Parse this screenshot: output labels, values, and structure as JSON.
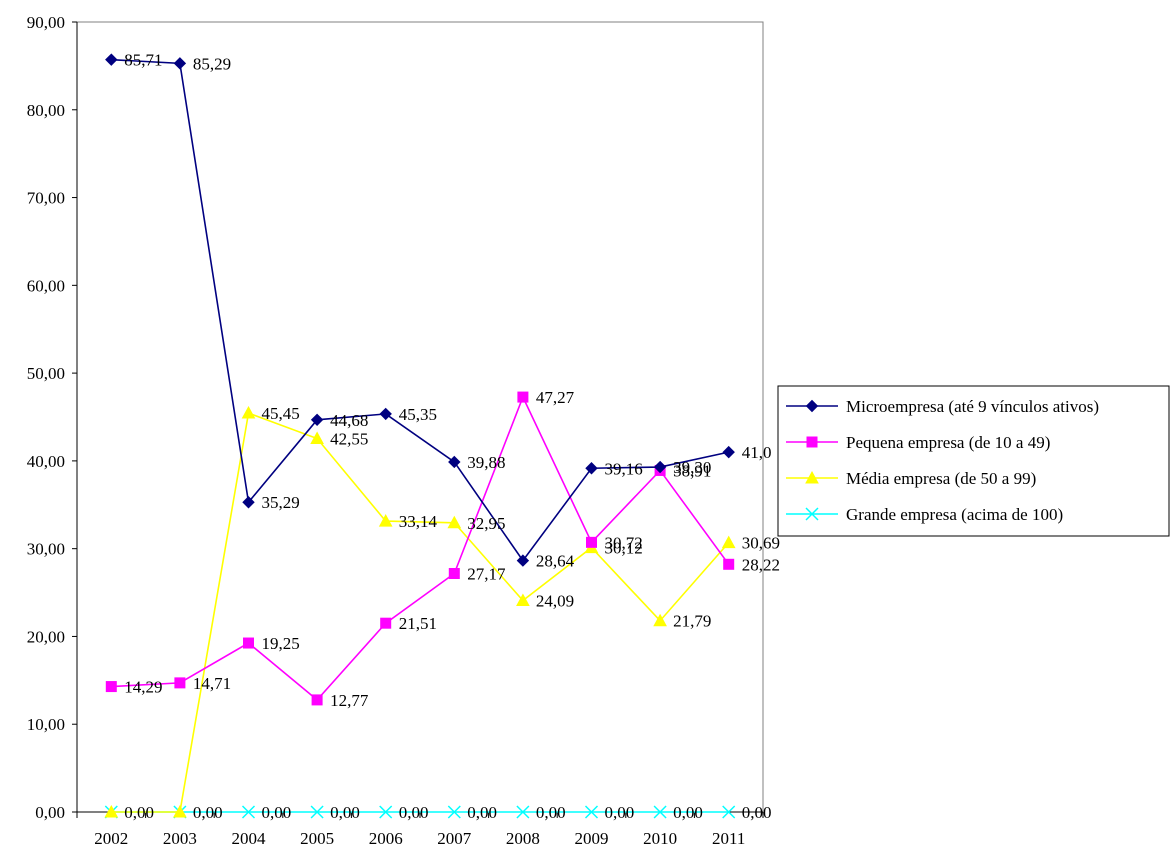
{
  "chart_data": {
    "type": "line",
    "title": "",
    "xlabel": "",
    "ylabel": "",
    "categories": [
      "2002",
      "2003",
      "2004",
      "2005",
      "2006",
      "2007",
      "2008",
      "2009",
      "2010",
      "2011"
    ],
    "ylim": [
      0,
      90
    ],
    "yticks": [
      "0,00",
      "10,00",
      "20,00",
      "30,00",
      "40,00",
      "50,00",
      "60,00",
      "70,00",
      "80,00",
      "90,00"
    ],
    "grid": false,
    "legend_position": "right",
    "series": [
      {
        "name": "Microempresa (até 9 vínculos ativos)",
        "color": "#000080",
        "marker": "diamond",
        "values": [
          85.71,
          85.29,
          35.29,
          44.68,
          45.35,
          39.88,
          28.64,
          39.16,
          39.3,
          41.0
        ],
        "labels": [
          "85,71",
          "85,29",
          "35,29",
          "44,68",
          "45,35",
          "39,88",
          "28,64",
          "39,16",
          "39,30",
          "41,0"
        ]
      },
      {
        "name": "Pequena empresa (de 10 a 49)",
        "color": "#ff00ff",
        "marker": "square",
        "values": [
          14.29,
          14.71,
          19.25,
          12.77,
          21.51,
          27.17,
          47.27,
          30.72,
          38.91,
          28.22
        ],
        "labels": [
          "14,29",
          "14,71",
          "19,25",
          "12,77",
          "21,51",
          "27,17",
          "47,27",
          "30,72",
          "38,91",
          "28,22"
        ]
      },
      {
        "name": "Média empresa (de 50 a 99)",
        "color": "#ffff00",
        "marker": "triangle",
        "values": [
          0.0,
          0.0,
          45.45,
          42.55,
          33.14,
          32.95,
          24.09,
          30.12,
          21.79,
          30.69
        ],
        "labels": [
          "",
          "",
          "45,45",
          "42,55",
          "33,14",
          "32,95",
          "24,09",
          "30,12",
          "21,79",
          "30,69"
        ]
      },
      {
        "name": "Grande empresa (acima de 100)",
        "color": "#00ffff",
        "marker": "x",
        "values": [
          0.0,
          0.0,
          0.0,
          0.0,
          0.0,
          0.0,
          0.0,
          0.0,
          0.0,
          0.0
        ],
        "labels": [
          "0,00",
          "0,00",
          "0,00",
          "0,00",
          "0,00",
          "0,00",
          "0,00",
          "0,00",
          "0,00",
          "0,00"
        ]
      }
    ]
  }
}
